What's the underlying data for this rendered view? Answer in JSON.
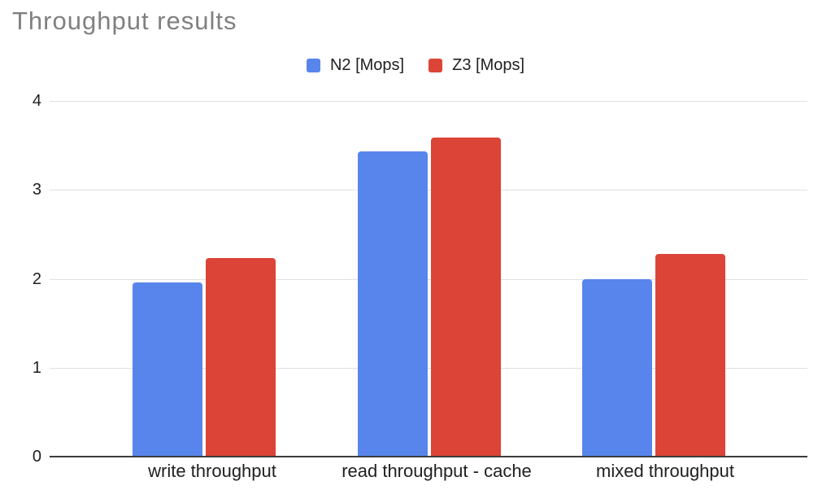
{
  "title": "Throughput results",
  "colors": {
    "background": "#ffffff",
    "title_text": "#808080",
    "axis_text": "#1f1f1f",
    "legend_text": "#212121",
    "gridline": "#e0e0e0",
    "baseline": "#3c3c3c"
  },
  "chart_data": {
    "type": "bar",
    "title": "Throughput results",
    "categories": [
      "write throughput",
      "read throughput - cache",
      "mixed throughput"
    ],
    "series": [
      {
        "name": "N2 [Mops]",
        "color": "#5885EC",
        "values": [
          1.96,
          3.43,
          2.0
        ]
      },
      {
        "name": "Z3 [Mops]",
        "color": "#DB4437",
        "values": [
          2.23,
          3.59,
          2.28
        ]
      }
    ],
    "xlabel": "",
    "ylabel": "",
    "ylim": [
      0,
      4
    ],
    "y_ticks": [
      0,
      1,
      2,
      3,
      4
    ],
    "grid": true,
    "legend_position": "top"
  }
}
